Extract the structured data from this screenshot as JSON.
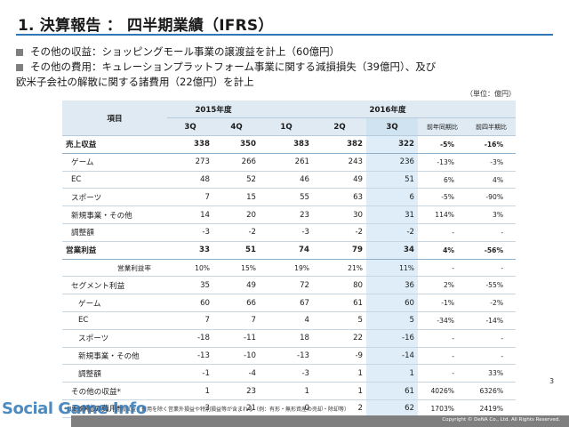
{
  "title": "1. 決算報告 ： 四半期業績（IFRS）",
  "bullets": [
    {
      "text": "その他の収益：ショッピングモール事業の譲渡益を計上（60億円）",
      "cont": ""
    },
    {
      "text": "その他の費用：キュレーションプラットフォーム事業に関する減損損失（39億円）、及び",
      "cont": "欧米子会社の解散に関する諸費用（22億円）を計上"
    }
  ],
  "unit": "（単位：億円）",
  "header": {
    "item": "項目",
    "fy2015": "2015年度",
    "fy2016": "2016年度",
    "cols": [
      "3Q",
      "4Q",
      "1Q",
      "2Q",
      "3Q"
    ],
    "yoy": "前年同期比",
    "qoq": "前四半期比"
  },
  "rows": [
    {
      "label": "売上収益",
      "vals": [
        "338",
        "350",
        "383",
        "382",
        "322"
      ],
      "yoy": "-5%",
      "qoq": "-16%"
    },
    {
      "label": "ゲーム",
      "vals": [
        "273",
        "266",
        "261",
        "243",
        "236"
      ],
      "yoy": "-13%",
      "qoq": "-3%"
    },
    {
      "label": "EC",
      "vals": [
        "48",
        "52",
        "46",
        "49",
        "51"
      ],
      "yoy": "6%",
      "qoq": "4%"
    },
    {
      "label": "スポーツ",
      "vals": [
        "7",
        "15",
        "55",
        "63",
        "6"
      ],
      "yoy": "-5%",
      "qoq": "-90%"
    },
    {
      "label": "新規事業・その他",
      "vals": [
        "14",
        "20",
        "23",
        "30",
        "31"
      ],
      "yoy": "114%",
      "qoq": "3%"
    },
    {
      "label": "調整額",
      "vals": [
        "-3",
        "-2",
        "-3",
        "-2",
        "-2"
      ],
      "yoy": "-",
      "qoq": "-"
    },
    {
      "label": "営業利益",
      "vals": [
        "33",
        "51",
        "74",
        "79",
        "34"
      ],
      "yoy": "4%",
      "qoq": "-56%"
    },
    {
      "label": "営業利益率",
      "vals": [
        "10%",
        "15%",
        "19%",
        "21%",
        "11%"
      ],
      "yoy": "-",
      "qoq": "-"
    },
    {
      "label": "セグメント利益",
      "vals": [
        "35",
        "49",
        "72",
        "80",
        "36"
      ],
      "yoy": "2%",
      "qoq": "-55%"
    },
    {
      "label": "ゲーム",
      "vals": [
        "60",
        "66",
        "67",
        "61",
        "60"
      ],
      "yoy": "-1%",
      "qoq": "-2%"
    },
    {
      "label": "EC",
      "vals": [
        "7",
        "7",
        "4",
        "5",
        "5"
      ],
      "yoy": "-34%",
      "qoq": "-14%"
    },
    {
      "label": "スポーツ",
      "vals": [
        "-18",
        "-11",
        "18",
        "22",
        "-16"
      ],
      "yoy": "-",
      "qoq": "-"
    },
    {
      "label": "新規事業・その他",
      "vals": [
        "-13",
        "-10",
        "-13",
        "-9",
        "-14"
      ],
      "yoy": "-",
      "qoq": "-"
    },
    {
      "label": "調整額",
      "vals": [
        "-1",
        "-4",
        "-3",
        "1",
        "1"
      ],
      "yoy": "-",
      "qoq": "33%"
    },
    {
      "label": "その他の収益*",
      "vals": [
        "1",
        "23",
        "1",
        "1",
        "61"
      ],
      "yoy": "4026%",
      "qoq": "6326%"
    },
    {
      "label": "その他の費用*",
      "vals": [
        "3",
        "21",
        "0",
        "2",
        "62"
      ],
      "yoy": "1703%",
      "qoq": "2419%"
    }
  ],
  "footnote": "*日本基準における、金融収益・費用を除く営業外損益や特別損益等が含まれる（例：有形・無形資産の売却・除却等）",
  "page_number": "3",
  "copyright": "Copyright © DeNA Co., Ltd. All Rights Reserved.",
  "watermark": "Social Game Info"
}
